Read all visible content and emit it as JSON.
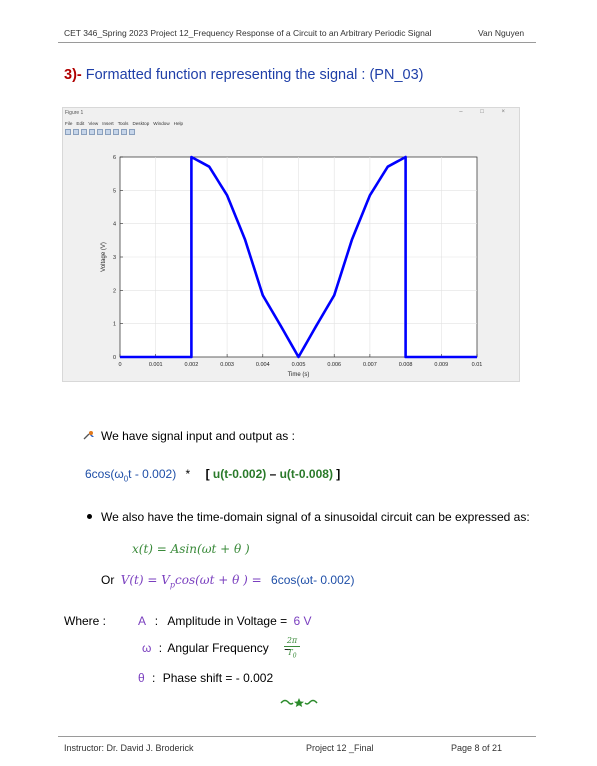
{
  "header": {
    "left": "CET 346_Spring 2023 Project 12_Frequency Response of a Circuit to an Arbitrary Periodic Signal",
    "right": "Van Nguyen"
  },
  "section": {
    "number": "3)-",
    "title": " Formatted function representing the signal",
    "suffix": " : (PN_03)"
  },
  "figure_window": {
    "title": "Figure 1",
    "controls": "– □ ×",
    "menu": [
      "File",
      "Edit",
      "View",
      "Insert",
      "Tools",
      "Desktop",
      "Window",
      "Help"
    ]
  },
  "chart_data": {
    "type": "line",
    "xlabel": "Time (s)",
    "ylabel": "Voltage (V)",
    "xlim": [
      0,
      0.01
    ],
    "ylim": [
      0,
      6
    ],
    "xticks": [
      "0",
      "0.001",
      "0.002",
      "0.003",
      "0.004",
      "0.005",
      "0.006",
      "0.007",
      "0.008",
      "0.009",
      "0.01"
    ],
    "yticks": [
      "0",
      "1",
      "2",
      "3",
      "4",
      "5",
      "6"
    ],
    "grid": true,
    "series": [
      {
        "color": "#0000ff",
        "x": [
          0,
          0.002,
          0.002,
          0.0025,
          0.003,
          0.0035,
          0.004,
          0.0045,
          0.005,
          0.0055,
          0.006,
          0.0065,
          0.007,
          0.0075,
          0.008,
          0.008,
          0.01
        ],
        "y": [
          0,
          0,
          6,
          5.71,
          4.85,
          3.53,
          1.85,
          0.94,
          0,
          0.94,
          1.85,
          3.53,
          4.85,
          5.71,
          6,
          0,
          0
        ]
      }
    ]
  },
  "bullet1": {
    "text": "We have signal input and output as :"
  },
  "eq1": {
    "part1": "6cos(ω",
    "sub": "0",
    "part2": "t - 0.002)",
    "times": "*",
    "bracket_open": "[",
    "u1": "u(t-0.002)",
    "dash": " – ",
    "u2": "u(t-0.008)",
    "bracket_close": "]"
  },
  "bullet2": {
    "text": "We also have the time-domain signal of a sinusoidal circuit can be expressed as:"
  },
  "eq2": {
    "text": "x(t) = Asin(ωt + θ )"
  },
  "eq3": {
    "or": "Or",
    "lhs": "V(t) = V",
    "sub": "p",
    "rhs": "cos(ωt + θ ) =",
    "value": "6cos(ωt- 0.002)"
  },
  "where": {
    "label": "Where :",
    "a_sym": "A",
    "a_text": "Amplitude  in Voltage  =",
    "a_val": "6 V",
    "w_sym": "ω",
    "w_text": "Angular Frequency",
    "w_eq": "=",
    "w_num": "2π",
    "w_den": "T",
    "w_den_sub": "0",
    "theta_sym": "θ",
    "theta_text": "Phase shift =  - 0.002"
  },
  "footer": {
    "instructor": "Instructor: Dr. David J. Broderick",
    "project": "Project 12 _Final",
    "page": "Page 8 of 21"
  }
}
